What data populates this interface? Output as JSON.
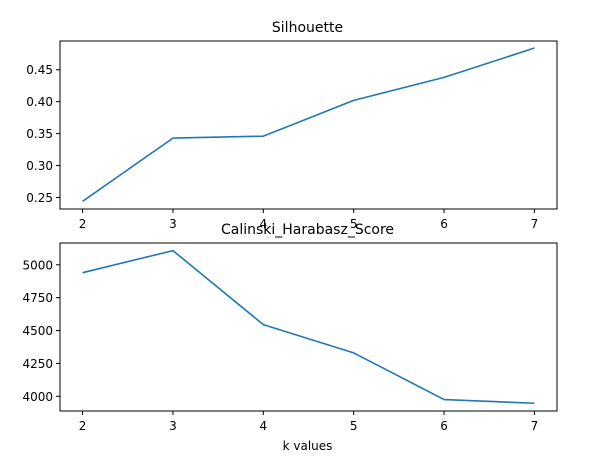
{
  "colors": {
    "series": "#1f77b4"
  },
  "chart_data": [
    {
      "type": "line",
      "title": "Silhouette",
      "xlabel": "",
      "ylabel": "",
      "x": [
        2,
        3,
        4,
        5,
        6,
        7
      ],
      "xticks": [
        "2",
        "3",
        "4",
        "5",
        "6",
        "7"
      ],
      "series": [
        {
          "values": [
            0.244,
            0.343,
            0.346,
            0.402,
            0.438,
            0.484
          ]
        }
      ],
      "xlim": [
        1.75,
        7.25
      ],
      "ylim": [
        0.232,
        0.495
      ],
      "yticks": [
        0.25,
        0.3,
        0.35,
        0.4,
        0.45
      ],
      "ytick_labels": [
        "0.25",
        "0.30",
        "0.35",
        "0.40",
        "0.45"
      ],
      "grid": false
    },
    {
      "type": "line",
      "title": "Calinski_Harabasz_Score",
      "xlabel": "k values",
      "ylabel": "",
      "x": [
        2,
        3,
        4,
        5,
        6,
        7
      ],
      "xticks": [
        "2",
        "3",
        "4",
        "5",
        "6",
        "7"
      ],
      "series": [
        {
          "values": [
            4940,
            5108,
            4545,
            4330,
            3975,
            3947
          ]
        }
      ],
      "xlim": [
        1.75,
        7.25
      ],
      "ylim": [
        3888,
        5166
      ],
      "yticks": [
        4000,
        4250,
        4500,
        4750,
        5000
      ],
      "ytick_labels": [
        "4000",
        "4250",
        "4500",
        "4750",
        "5000"
      ],
      "grid": false
    }
  ]
}
